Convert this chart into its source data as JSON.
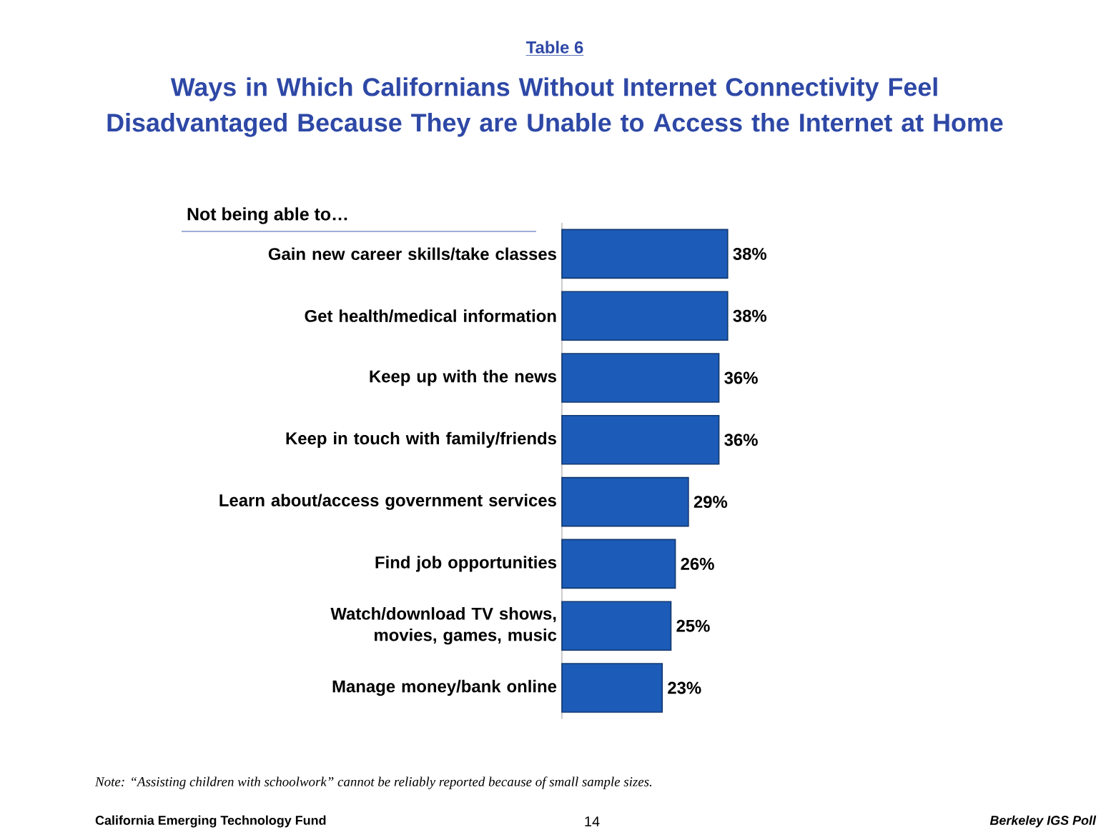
{
  "chart_data": {
    "type": "bar",
    "orientation": "horizontal",
    "title": "Table 6",
    "subtitle": "Ways in Which Californians Without Internet Connectivity Feel Disadvantaged Because They are Unable to Access the Internet at Home",
    "ylabel": "Not being able to…",
    "categories": [
      "Gain new career skills/take classes",
      "Get health/medical information",
      "Keep up with the news",
      "Keep in touch with family/friends",
      "Learn about/access government services",
      "Find job opportunities",
      "Watch/download TV shows, movies, games, music",
      "Manage money/bank online"
    ],
    "values": [
      38,
      38,
      36,
      36,
      29,
      26,
      25,
      23
    ],
    "value_labels": [
      "38%",
      "38%",
      "36%",
      "36%",
      "29%",
      "26%",
      "25%",
      "23%"
    ],
    "color": "#1c5cb8",
    "annotations": [
      "Note: “Assisting children with schoolwork” cannot be reliably reported because of small sample sizes.",
      "California Emerging Technology Fund",
      "14",
      "Berkeley IGS Poll"
    ]
  }
}
